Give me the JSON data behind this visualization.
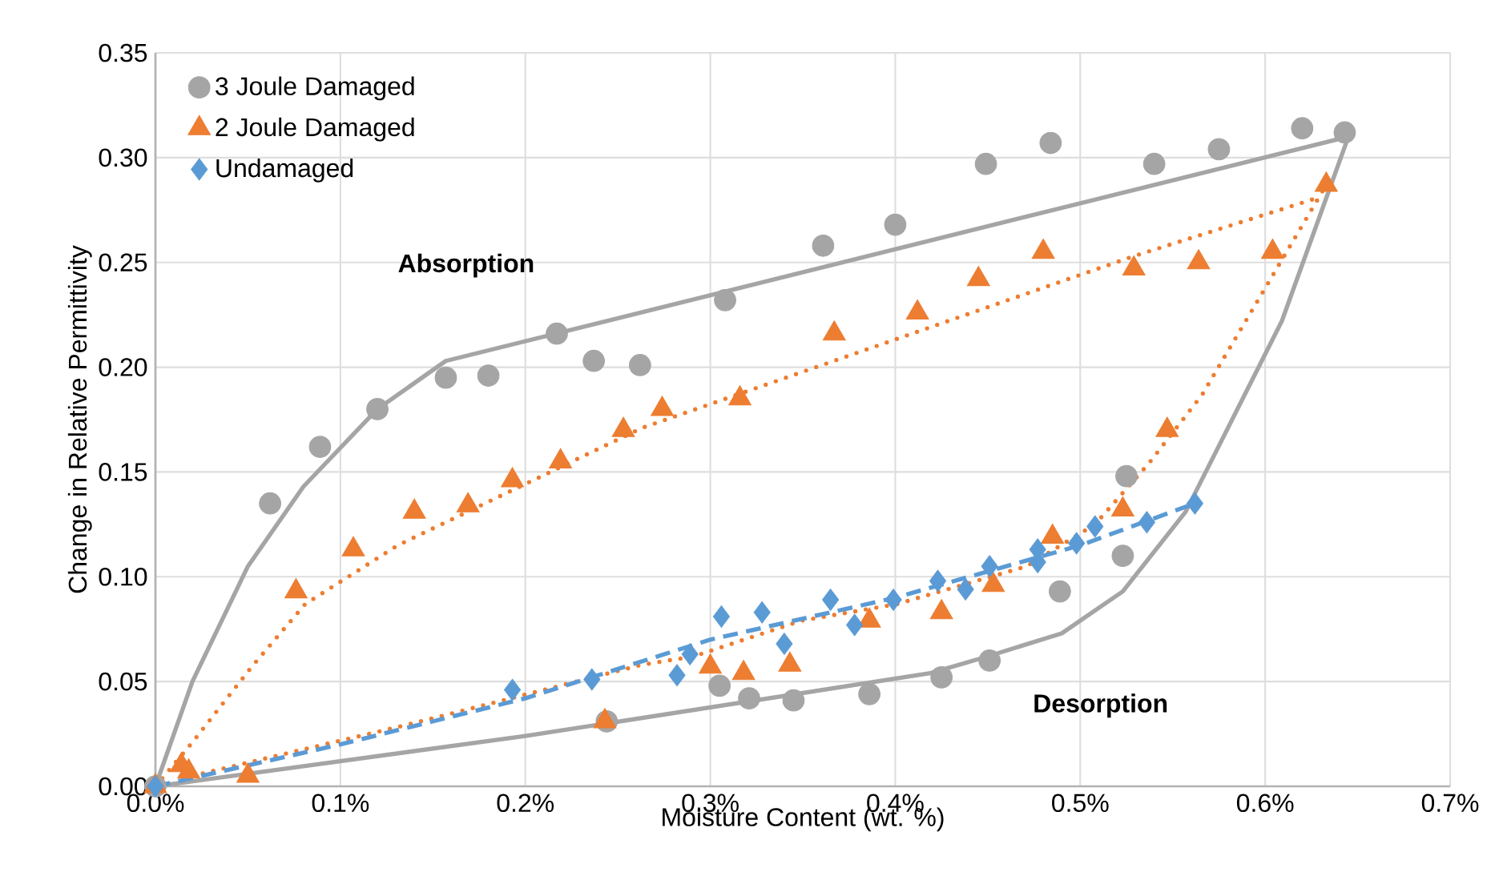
{
  "chart_data": {
    "type": "scatter",
    "xlabel": "Moisture Content (wt. %)",
    "ylabel": "Change in Relative Permittivity",
    "xlim": [
      0,
      0.7
    ],
    "ylim": [
      0,
      0.35
    ],
    "xticks": [
      {
        "value": 0,
        "label": "0.0%"
      },
      {
        "value": 0.1,
        "label": "0.1%"
      },
      {
        "value": 0.2,
        "label": "0.2%"
      },
      {
        "value": 0.3,
        "label": "0.3%"
      },
      {
        "value": 0.4,
        "label": "0.4%"
      },
      {
        "value": 0.5,
        "label": "0.5%"
      },
      {
        "value": 0.6,
        "label": "0.6%"
      },
      {
        "value": 0.7,
        "label": "0.7%"
      }
    ],
    "yticks": [
      {
        "value": 0,
        "label": "0.00"
      },
      {
        "value": 0.05,
        "label": "0.05"
      },
      {
        "value": 0.1,
        "label": "0.10"
      },
      {
        "value": 0.15,
        "label": "0.15"
      },
      {
        "value": 0.2,
        "label": "0.20"
      },
      {
        "value": 0.25,
        "label": "0.25"
      },
      {
        "value": 0.3,
        "label": "0.30"
      },
      {
        "value": 0.35,
        "label": "0.35"
      }
    ],
    "grid": true,
    "legend": "top left",
    "annotations": [
      "**Absorption**",
      "**Desorption**"
    ],
    "series": [
      {
        "name": "3 Joule Damaged",
        "marker": "circle",
        "color": "#a5a5a5",
        "x": [
          0,
          0.062,
          0.089,
          0.12,
          0.157,
          0.18,
          0.217,
          0.237,
          0.262,
          0.308,
          0.361,
          0.4,
          0.449,
          0.484,
          0.54,
          0.575,
          0.62,
          0.643,
          0.525,
          0.523,
          0.489,
          0.451,
          0.425,
          0.386,
          0.345,
          0.321,
          0.305,
          0.244
        ],
        "values": [
          0,
          0.135,
          0.162,
          0.18,
          0.195,
          0.196,
          0.216,
          0.203,
          0.201,
          0.232,
          0.258,
          0.268,
          0.297,
          0.307,
          0.297,
          0.304,
          0.314,
          0.312,
          0.148,
          0.11,
          0.093,
          0.06,
          0.052,
          0.044,
          0.041,
          0.042,
          0.048,
          0.031
        ]
      },
      {
        "name": "2 Joule Damaged",
        "marker": "triangle",
        "color": "#ed7d31",
        "x": [
          0,
          0.014,
          0.018,
          0.05,
          0.076,
          0.107,
          0.14,
          0.169,
          0.193,
          0.219,
          0.253,
          0.274,
          0.316,
          0.367,
          0.412,
          0.445,
          0.48,
          0.529,
          0.564,
          0.604,
          0.633,
          0.547,
          0.523,
          0.485,
          0.453,
          0.425,
          0.386,
          0.343,
          0.318,
          0.3,
          0.243
        ],
        "values": [
          0,
          0.01,
          0.007,
          0.005,
          0.093,
          0.113,
          0.131,
          0.134,
          0.146,
          0.155,
          0.17,
          0.18,
          0.185,
          0.216,
          0.226,
          0.242,
          0.255,
          0.247,
          0.25,
          0.255,
          0.287,
          0.17,
          0.132,
          0.119,
          0.096,
          0.083,
          0.079,
          0.058,
          0.054,
          0.057,
          0.031
        ]
      },
      {
        "name": "Undamaged",
        "marker": "diamond",
        "color": "#5b9bd5",
        "x": [
          0,
          0.193,
          0.236,
          0.282,
          0.289,
          0.306,
          0.328,
          0.34,
          0.365,
          0.378,
          0.399,
          0.423,
          0.438,
          0.451,
          0.477,
          0.477,
          0.498,
          0.508,
          0.536,
          0.562
        ],
        "values": [
          0,
          0.046,
          0.051,
          0.053,
          0.063,
          0.081,
          0.083,
          0.068,
          0.089,
          0.077,
          0.089,
          0.098,
          0.094,
          0.105,
          0.113,
          0.107,
          0.116,
          0.124,
          0.126,
          0.135
        ]
      },
      {
        "type": "line",
        "line_style": "solid",
        "color": "#a5a5a5",
        "x": [
          0,
          0.02,
          0.05,
          0.08,
          0.12,
          0.157,
          0.645
        ],
        "values": [
          0,
          0.05,
          0.105,
          0.143,
          0.18,
          0.203,
          0.31
        ]
      },
      {
        "type": "line",
        "line_style": "solid",
        "color": "#a5a5a5",
        "x": [
          0,
          0.2,
          0.419,
          0.45,
          0.49,
          0.523,
          0.557,
          0.609,
          0.645
        ],
        "values": [
          0,
          0.024,
          0.054,
          0.062,
          0.073,
          0.093,
          0.131,
          0.222,
          0.31
        ]
      },
      {
        "type": "line",
        "line_style": "dotted",
        "color": "#ed7d31",
        "x": [
          0,
          0.02,
          0.052,
          0.081,
          0.131,
          0.263,
          0.529,
          0.629
        ],
        "values": [
          0,
          0.021,
          0.057,
          0.087,
          0.115,
          0.171,
          0.253,
          0.281
        ]
      },
      {
        "type": "line",
        "line_style": "dotted",
        "color": "#ed7d31",
        "x": [
          0.02,
          0.139,
          0.263,
          0.291,
          0.349,
          0.401,
          0.471,
          0.508,
          0.537,
          0.566,
          0.633
        ],
        "values": [
          0.005,
          0.03,
          0.058,
          0.062,
          0.079,
          0.087,
          0.105,
          0.125,
          0.154,
          0.187,
          0.287
        ]
      },
      {
        "type": "line",
        "line_style": "dashed",
        "color": "#5b9bd5",
        "x": [
          0,
          0.1,
          0.2,
          0.3,
          0.4,
          0.5,
          0.562
        ],
        "values": [
          0,
          0.02,
          0.042,
          0.07,
          0.09,
          0.115,
          0.135
        ]
      }
    ]
  }
}
